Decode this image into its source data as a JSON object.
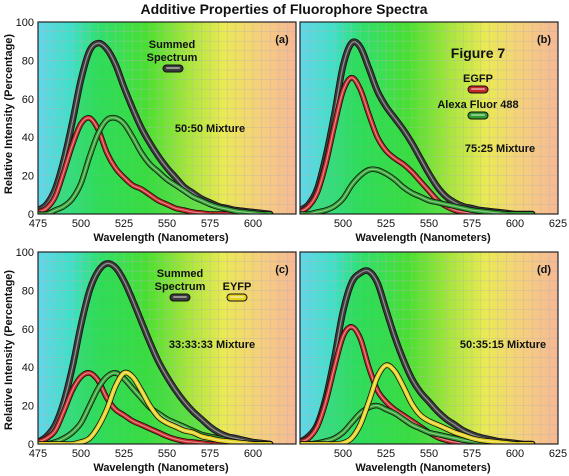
{
  "title": "Additive Properties of Fluorophore Spectra",
  "colors": {
    "summed": "#3a3a3a",
    "egfp": "#c62828",
    "alexa": "#2e9e2e",
    "eyfp": "#e6d21e",
    "grid": "#b5b5b5",
    "frame": "#222222"
  },
  "ylabel": "Relative Intensity (Percentage)",
  "chart_data": [
    {
      "type": "line",
      "panel_label": "(a)",
      "mixture": "50:50 Mixture",
      "xlabel": "Wavelength (Nanometers)",
      "xlim": [
        475,
        625
      ],
      "ylim": [
        0,
        100
      ],
      "x_ticks": [
        475,
        500,
        525,
        550,
        575,
        600
      ],
      "y_ticks": [
        0,
        20,
        40,
        60,
        80,
        100
      ],
      "legend_text": [
        "Summed",
        "Spectrum"
      ],
      "legend_series": "summed",
      "x": [
        475,
        480,
        485,
        490,
        495,
        500,
        505,
        510,
        515,
        520,
        525,
        530,
        535,
        540,
        545,
        550,
        555,
        560,
        565,
        570,
        575,
        580,
        585,
        590,
        595,
        600,
        605,
        610
      ],
      "series": [
        {
          "key": "summed",
          "values": [
            2,
            5,
            13,
            28,
            48,
            70,
            85,
            89,
            86,
            78,
            66,
            55,
            45,
            37,
            30,
            24,
            19,
            14,
            11,
            8,
            6,
            4,
            3,
            2,
            1.5,
            1,
            0.5,
            0
          ]
        },
        {
          "key": "egfp",
          "values": [
            1,
            3,
            9,
            22,
            36,
            47,
            50,
            44,
            32,
            24,
            19,
            15,
            13,
            10,
            7,
            5,
            3,
            2,
            1,
            0.5,
            0,
            0,
            0,
            0,
            0,
            0,
            0,
            0
          ]
        },
        {
          "key": "alexa",
          "values": [
            0,
            0,
            2,
            4,
            8,
            16,
            30,
            42,
            49,
            50,
            47,
            40,
            32,
            26,
            22,
            18,
            15,
            12,
            9,
            7,
            5,
            3.5,
            2.5,
            1.5,
            1,
            0.5,
            0,
            0
          ]
        }
      ]
    },
    {
      "type": "line",
      "panel_label": "(b)",
      "mixture": "75:25 Mixture",
      "figure_label": "Figure 7",
      "xlabel": "Wavelength (Nanometers)",
      "xlim": [
        475,
        625
      ],
      "ylim": [
        0,
        100
      ],
      "x_ticks": [
        500,
        525,
        550,
        575,
        600,
        625
      ],
      "y_ticks": [],
      "legend": [
        {
          "text": "EGFP",
          "series": "egfp"
        },
        {
          "text": "Alexa Fluor 488",
          "series": "alexa"
        }
      ],
      "x": [
        475,
        480,
        485,
        490,
        495,
        500,
        505,
        510,
        515,
        520,
        525,
        530,
        535,
        540,
        545,
        550,
        555,
        560,
        565,
        570,
        575,
        580,
        585,
        590,
        595,
        600,
        605,
        610
      ],
      "series": [
        {
          "key": "summed",
          "values": [
            2,
            5,
            13,
            30,
            52,
            77,
            89,
            87,
            76,
            64,
            56,
            50,
            44,
            37,
            29,
            21,
            14,
            9,
            6,
            4,
            3,
            2,
            1.5,
            1,
            0.5,
            0,
            0,
            0
          ]
        },
        {
          "key": "egfp",
          "values": [
            1,
            4,
            11,
            26,
            46,
            64,
            71,
            65,
            52,
            40,
            33,
            29,
            26,
            22,
            17,
            12,
            7,
            4,
            2,
            1,
            0.5,
            0,
            0,
            0,
            0,
            0,
            0,
            0
          ]
        },
        {
          "key": "alexa",
          "values": [
            0,
            0,
            1,
            2,
            4,
            8,
            15,
            20,
            23,
            23,
            21,
            18,
            14,
            11,
            9,
            7,
            6,
            5,
            4,
            3,
            2,
            1.5,
            1,
            0.5,
            0,
            0,
            0,
            0
          ]
        }
      ]
    },
    {
      "type": "line",
      "panel_label": "(c)",
      "mixture": "33:33:33 Mixture",
      "xlabel": "Wavelength (Nanometers)",
      "xlim": [
        475,
        625
      ],
      "ylim": [
        0,
        100
      ],
      "x_ticks": [
        475,
        500,
        525,
        550,
        575,
        600
      ],
      "y_ticks": [
        0,
        20,
        40,
        60,
        80,
        100
      ],
      "legend_text": [
        "Summed",
        "Spectrum"
      ],
      "legend_series": "summed",
      "legend": [
        {
          "text": "EYFP",
          "series": "eyfp"
        }
      ],
      "x": [
        475,
        480,
        485,
        490,
        495,
        500,
        505,
        510,
        515,
        520,
        525,
        530,
        535,
        540,
        545,
        550,
        555,
        560,
        565,
        570,
        575,
        580,
        585,
        590,
        595,
        600,
        605,
        610
      ],
      "series": [
        {
          "key": "summed",
          "values": [
            1,
            4,
            10,
            22,
            40,
            62,
            80,
            90,
            94,
            92,
            85,
            75,
            64,
            53,
            43,
            35,
            28,
            22,
            17,
            13,
            9,
            6,
            4,
            3,
            2,
            1,
            0.5,
            0
          ]
        },
        {
          "key": "egfp",
          "values": [
            1,
            3,
            7,
            17,
            28,
            35,
            37,
            33,
            24,
            18,
            15,
            12,
            10,
            8,
            6,
            4,
            2.5,
            1.5,
            1,
            0.5,
            0,
            0,
            0,
            0,
            0,
            0,
            0,
            0
          ]
        },
        {
          "key": "alexa",
          "values": [
            0,
            0,
            1,
            3,
            6,
            11,
            20,
            29,
            35,
            37,
            34,
            29,
            24,
            19,
            16,
            13,
            11,
            9,
            7,
            5,
            4,
            3,
            2,
            1,
            0.5,
            0,
            0,
            0
          ]
        },
        {
          "key": "eyfp",
          "values": [
            0,
            0,
            0,
            0,
            0,
            1,
            3,
            9,
            18,
            30,
            37,
            35,
            28,
            20,
            14,
            11,
            9,
            7,
            6,
            4,
            3,
            2,
            1.5,
            1,
            0.5,
            0,
            0,
            0
          ]
        }
      ]
    },
    {
      "type": "line",
      "panel_label": "(d)",
      "mixture": "50:35:15 Mixture",
      "xlabel": "Wavelength (Nanometers)",
      "xlim": [
        475,
        625
      ],
      "ylim": [
        0,
        100
      ],
      "x_ticks": [
        500,
        525,
        550,
        575,
        600,
        625
      ],
      "y_ticks": [],
      "x": [
        475,
        480,
        485,
        490,
        495,
        500,
        505,
        510,
        515,
        520,
        525,
        530,
        535,
        540,
        545,
        550,
        555,
        560,
        565,
        570,
        575,
        580,
        585,
        590,
        595,
        600,
        605,
        610
      ],
      "series": [
        {
          "key": "summed",
          "values": [
            1,
            4,
            10,
            24,
            45,
            69,
            84,
            89,
            90,
            84,
            70,
            56,
            44,
            34,
            27,
            22,
            17,
            13,
            10,
            7,
            5,
            3.5,
            2.5,
            1.5,
            1,
            0.5,
            0,
            0
          ]
        },
        {
          "key": "egfp",
          "values": [
            1,
            3,
            9,
            22,
            40,
            56,
            61,
            55,
            40,
            28,
            22,
            18,
            15,
            12,
            9,
            6,
            3.5,
            2,
            1,
            0.5,
            0,
            0,
            0,
            0,
            0,
            0,
            0,
            0
          ]
        },
        {
          "key": "alexa",
          "values": [
            0,
            0,
            0.5,
            1.5,
            3,
            6,
            11,
            16,
            19,
            20,
            18,
            16,
            13,
            10,
            8,
            6,
            5,
            4,
            3,
            2,
            1.5,
            1,
            0.5,
            0,
            0,
            0,
            0,
            0
          ]
        },
        {
          "key": "eyfp",
          "values": [
            0,
            0,
            0,
            0,
            0,
            0.5,
            3,
            10,
            22,
            35,
            41,
            38,
            30,
            21,
            15,
            12,
            10,
            8,
            6,
            4.5,
            3,
            2,
            1.5,
            1,
            0.5,
            0,
            0,
            0
          ]
        }
      ]
    }
  ]
}
